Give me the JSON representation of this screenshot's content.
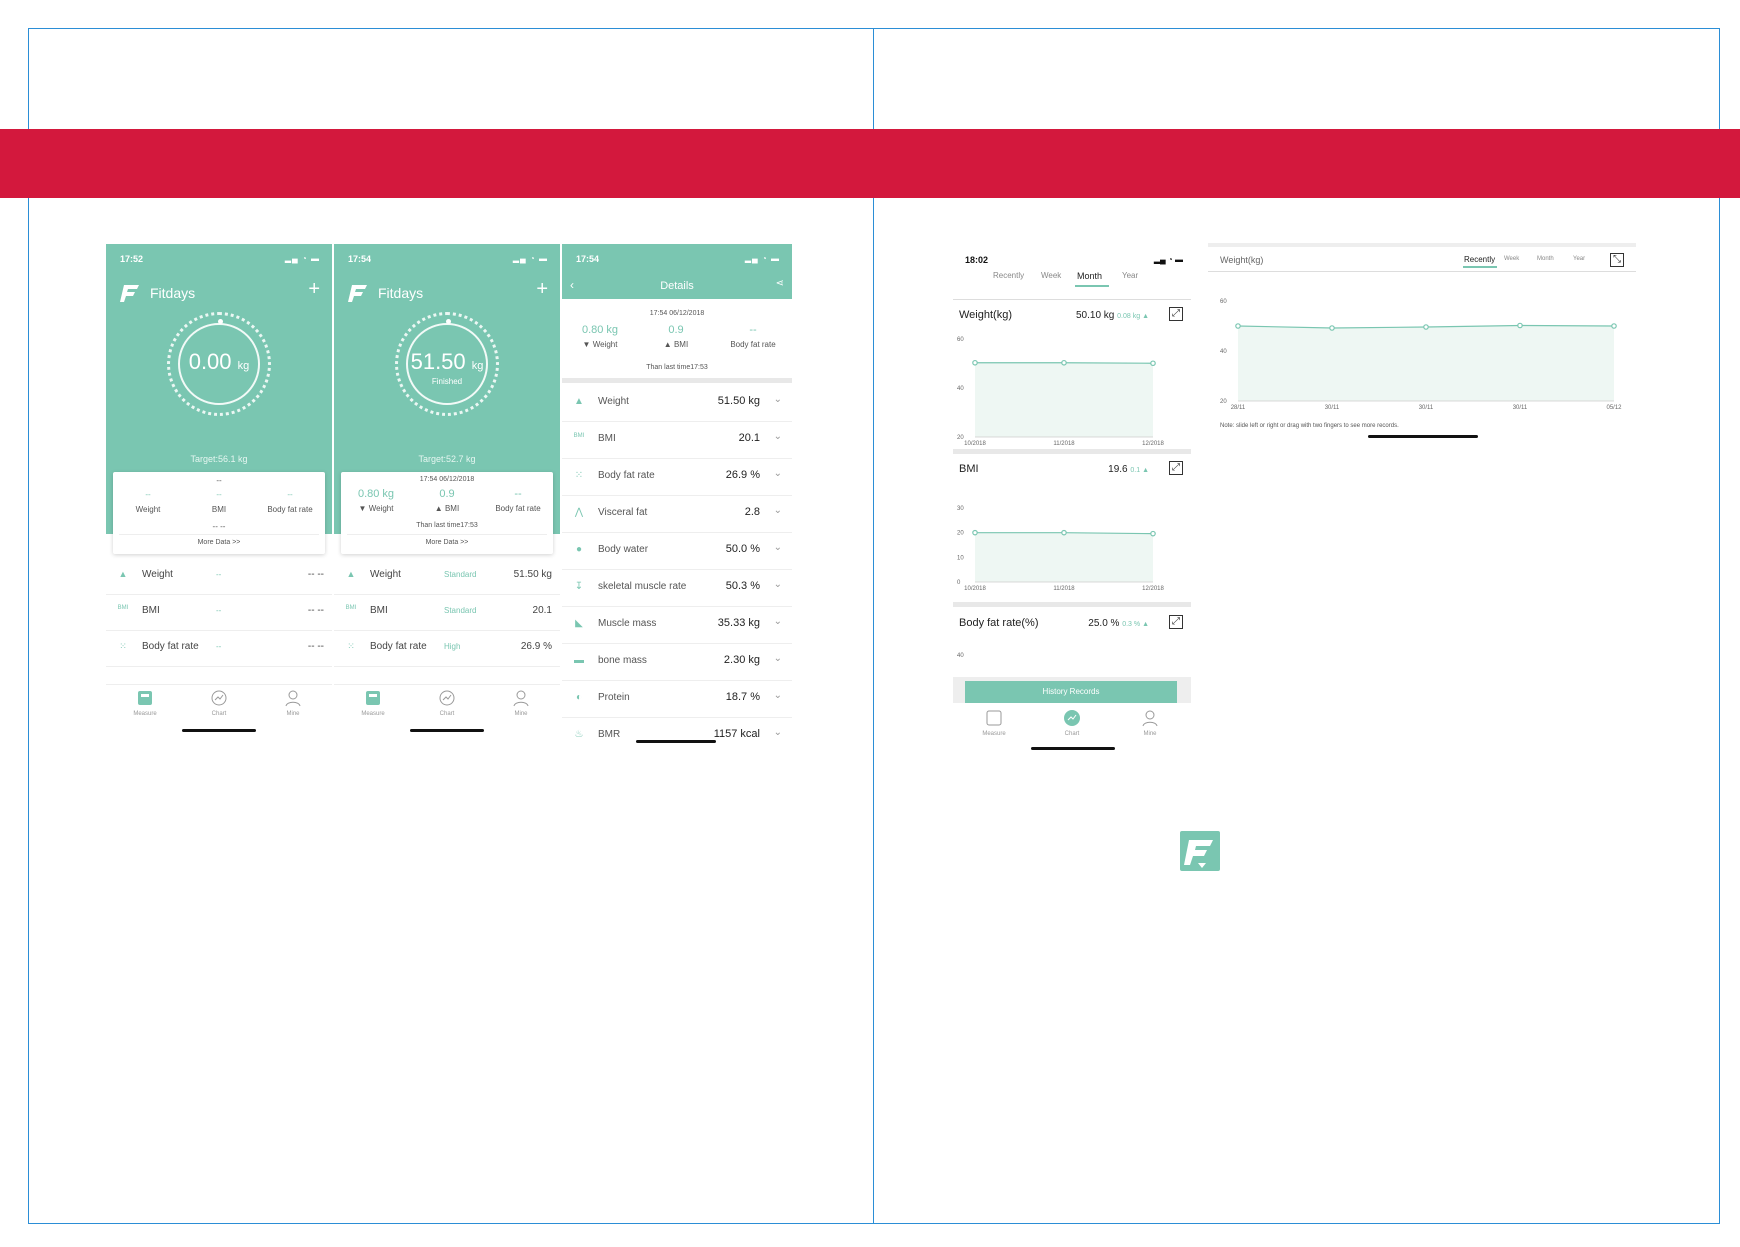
{
  "colors": {
    "accent": "#7ac6b1",
    "band": "#d3183d",
    "frame": "#2b8ed6"
  },
  "screen1": {
    "time": "17:52",
    "app_name": "Fitdays",
    "plus": "+",
    "weight_value": "0.00",
    "weight_unit": "kg",
    "target": "Target:56.1 kg",
    "card": {
      "top": "--",
      "cols": [
        {
          "val": "--",
          "label": "Weight"
        },
        {
          "val": "--",
          "label": "BMI"
        },
        {
          "val": "--",
          "label": "Body fat rate"
        }
      ],
      "dash": "-- --",
      "more": "More Data >>"
    },
    "rows": [
      {
        "icon": "weight-icon",
        "label": "Weight",
        "mid": "--",
        "val": "-- --"
      },
      {
        "icon": "bmi-icon",
        "label": "BMI",
        "mid": "--",
        "val": "-- --"
      },
      {
        "icon": "body-fat-icon",
        "label": "Body fat rate",
        "mid": "--",
        "val": "-- --"
      }
    ],
    "tabs": {
      "measure": "Measure",
      "chart": "Chart",
      "mine": "Mine"
    }
  },
  "screen2": {
    "time": "17:54",
    "app_name": "Fitdays",
    "plus": "+",
    "weight_value": "51.50",
    "weight_unit": "kg",
    "status": "Finished",
    "target": "Target:52.7 kg",
    "card": {
      "date": "17:54 06/12/2018",
      "cols": [
        {
          "val": "0.80 kg",
          "label": "Weight",
          "arrow": "▼"
        },
        {
          "val": "0.9",
          "label": "BMI",
          "arrow": "▲"
        },
        {
          "val": "--",
          "label": "Body fat rate",
          "arrow": ""
        }
      ],
      "than": "Than last time17:53",
      "more": "More Data >>"
    },
    "rows": [
      {
        "icon": "weight-icon",
        "label": "Weight",
        "mid": "Standard",
        "val": "51.50 kg"
      },
      {
        "icon": "bmi-icon",
        "label": "BMI",
        "mid": "Standard",
        "val": "20.1"
      },
      {
        "icon": "body-fat-icon",
        "label": "Body fat rate",
        "mid": "High",
        "val": "26.9 %"
      }
    ],
    "tabs": {
      "measure": "Measure",
      "chart": "Chart",
      "mine": "Mine"
    }
  },
  "screen3": {
    "time": "17:54",
    "title": "Details",
    "date": "17:54 06/12/2018",
    "cols": [
      {
        "val": "0.80 kg",
        "label": "Weight",
        "arrow": "▼"
      },
      {
        "val": "0.9",
        "label": "BMI",
        "arrow": "▲"
      },
      {
        "val": "--",
        "label": "Body fat rate",
        "arrow": ""
      }
    ],
    "than": "Than last time17:53",
    "rows": [
      {
        "icon": "weight-icon",
        "label": "Weight",
        "val": "51.50 kg"
      },
      {
        "icon": "bmi-icon",
        "label": "BMI",
        "val": "20.1"
      },
      {
        "icon": "body-fat-icon",
        "label": "Body fat rate",
        "val": "26.9 %"
      },
      {
        "icon": "visceral-fat-icon",
        "label": "Visceral fat",
        "val": "2.8"
      },
      {
        "icon": "body-water-icon",
        "label": "Body water",
        "val": "50.0 %"
      },
      {
        "icon": "skeletal-muscle-icon",
        "label": "skeletal muscle rate",
        "val": "50.3 %"
      },
      {
        "icon": "muscle-mass-icon",
        "label": "Muscle mass",
        "val": "35.33 kg"
      },
      {
        "icon": "bone-mass-icon",
        "label": "bone mass",
        "val": "2.30 kg"
      },
      {
        "icon": "protein-icon",
        "label": "Protein",
        "val": "18.7 %"
      },
      {
        "icon": "bmr-icon",
        "label": "BMR",
        "val": "1157 kcal"
      }
    ]
  },
  "screen4": {
    "time": "18:02",
    "tabs": [
      "Recently",
      "Week",
      "Month",
      "Year"
    ],
    "active_tab": "Month",
    "sections": [
      {
        "title": "Weight(kg)",
        "value": "50.10 kg",
        "delta": "0.08 kg ▲"
      },
      {
        "title": "BMI",
        "value": "19.6",
        "delta": "0.1 ▲"
      },
      {
        "title": "Body fat rate(%)",
        "value": "25.0 %",
        "delta": "0.3 % ▲"
      }
    ],
    "history": "History Records",
    "nav": {
      "measure": "Measure",
      "chart": "Chart",
      "mine": "Mine"
    }
  },
  "screen5": {
    "title": "Weight(kg)",
    "tabs": [
      "Recently",
      "Week",
      "Month",
      "Year"
    ],
    "active_tab": "Recently",
    "note": "Note: slide left or right or drag with two fingers to see more records."
  },
  "chart_data": [
    {
      "type": "line",
      "title": "Weight(kg)",
      "x": [
        "10/2018",
        "11/2018",
        "12/2018"
      ],
      "values": [
        50.3,
        50.3,
        50.1
      ],
      "yticks": [
        "60",
        "40",
        "20"
      ],
      "ylim": [
        20,
        60
      ]
    },
    {
      "type": "line",
      "title": "BMI",
      "x": [
        "10/2018",
        "11/2018",
        "12/2018"
      ],
      "values": [
        20.0,
        20.0,
        19.6
      ],
      "yticks": [
        "30",
        "20",
        "10",
        "0"
      ],
      "ylim": [
        0,
        30
      ]
    },
    {
      "type": "line",
      "title": "Weight(kg)",
      "x": [
        "28/11",
        "30/11",
        "30/11",
        "30/11",
        "05/12"
      ],
      "values": [
        50.0,
        49.2,
        49.6,
        50.2,
        50.0
      ],
      "yticks": [
        "60",
        "40",
        "20"
      ],
      "ylim": [
        20,
        60
      ]
    }
  ],
  "bf_ytick": "40"
}
